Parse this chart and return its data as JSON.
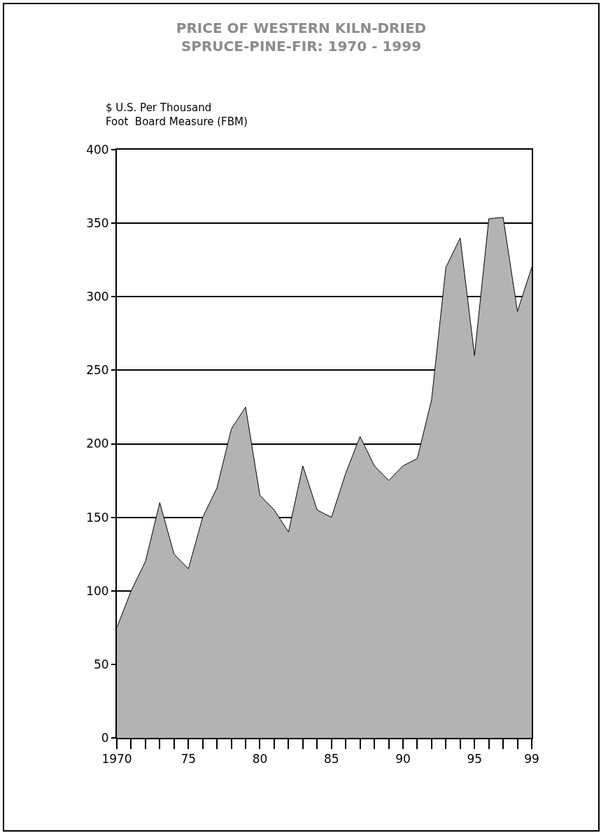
{
  "chart_data": {
    "type": "area",
    "title": "PRICE OF WESTERN KILN-DRIED\nSPRUCE-PINE-FIR: 1970 - 1999",
    "ylabel": "$ U.S. Per Thousand\nFoot  Board Measure (FBM)",
    "x": [
      1970,
      1971,
      1972,
      1973,
      1974,
      1975,
      1976,
      1977,
      1978,
      1979,
      1980,
      1981,
      1982,
      1983,
      1984,
      1985,
      1986,
      1987,
      1988,
      1989,
      1990,
      1991,
      1992,
      1993,
      1994,
      1995,
      1996,
      1997,
      1998,
      1999
    ],
    "series": [
      {
        "color": "#b3b3b3",
        "values": [
          75,
          100,
          120,
          160,
          125,
          115,
          150,
          170,
          210,
          225,
          165,
          155,
          140,
          185,
          155,
          150,
          180,
          205,
          185,
          175,
          185,
          190,
          230,
          320,
          340,
          260,
          353,
          354,
          290,
          320
        ]
      }
    ],
    "xlim": [
      1970,
      1999
    ],
    "xticks": [
      1970,
      {
        "value": 1971,
        "label": null
      },
      {
        "value": 1972,
        "label": null
      },
      {
        "value": 1973,
        "label": null
      },
      {
        "value": 1974,
        "label": null
      },
      {
        "value": 1975,
        "label": "75"
      },
      {
        "value": 1976,
        "label": null
      },
      {
        "value": 1977,
        "label": null
      },
      {
        "value": 1978,
        "label": null
      },
      {
        "value": 1979,
        "label": null
      },
      {
        "value": 1980,
        "label": "80"
      },
      {
        "value": 1981,
        "label": null
      },
      {
        "value": 1982,
        "label": null
      },
      {
        "value": 1983,
        "label": null
      },
      {
        "value": 1984,
        "label": null
      },
      {
        "value": 1985,
        "label": "85"
      },
      {
        "value": 1986,
        "label": null
      },
      {
        "value": 1987,
        "label": null
      },
      {
        "value": 1988,
        "label": null
      },
      {
        "value": 1989,
        "label": null
      },
      {
        "value": 1990,
        "label": "90"
      },
      {
        "value": 1991,
        "label": null
      },
      {
        "value": 1992,
        "label": null
      },
      {
        "value": 1993,
        "label": null
      },
      {
        "value": 1994,
        "label": null
      },
      {
        "value": 1995,
        "label": "95"
      },
      {
        "value": 1996,
        "label": null
      },
      {
        "value": 1997,
        "label": null
      },
      {
        "value": 1998,
        "label": null
      },
      {
        "value": 1999,
        "label": "99"
      }
    ],
    "ylim": [
      0,
      400
    ],
    "yticks": [
      0,
      50,
      100,
      150,
      200,
      250,
      300,
      350,
      400
    ],
    "grid": "y"
  }
}
